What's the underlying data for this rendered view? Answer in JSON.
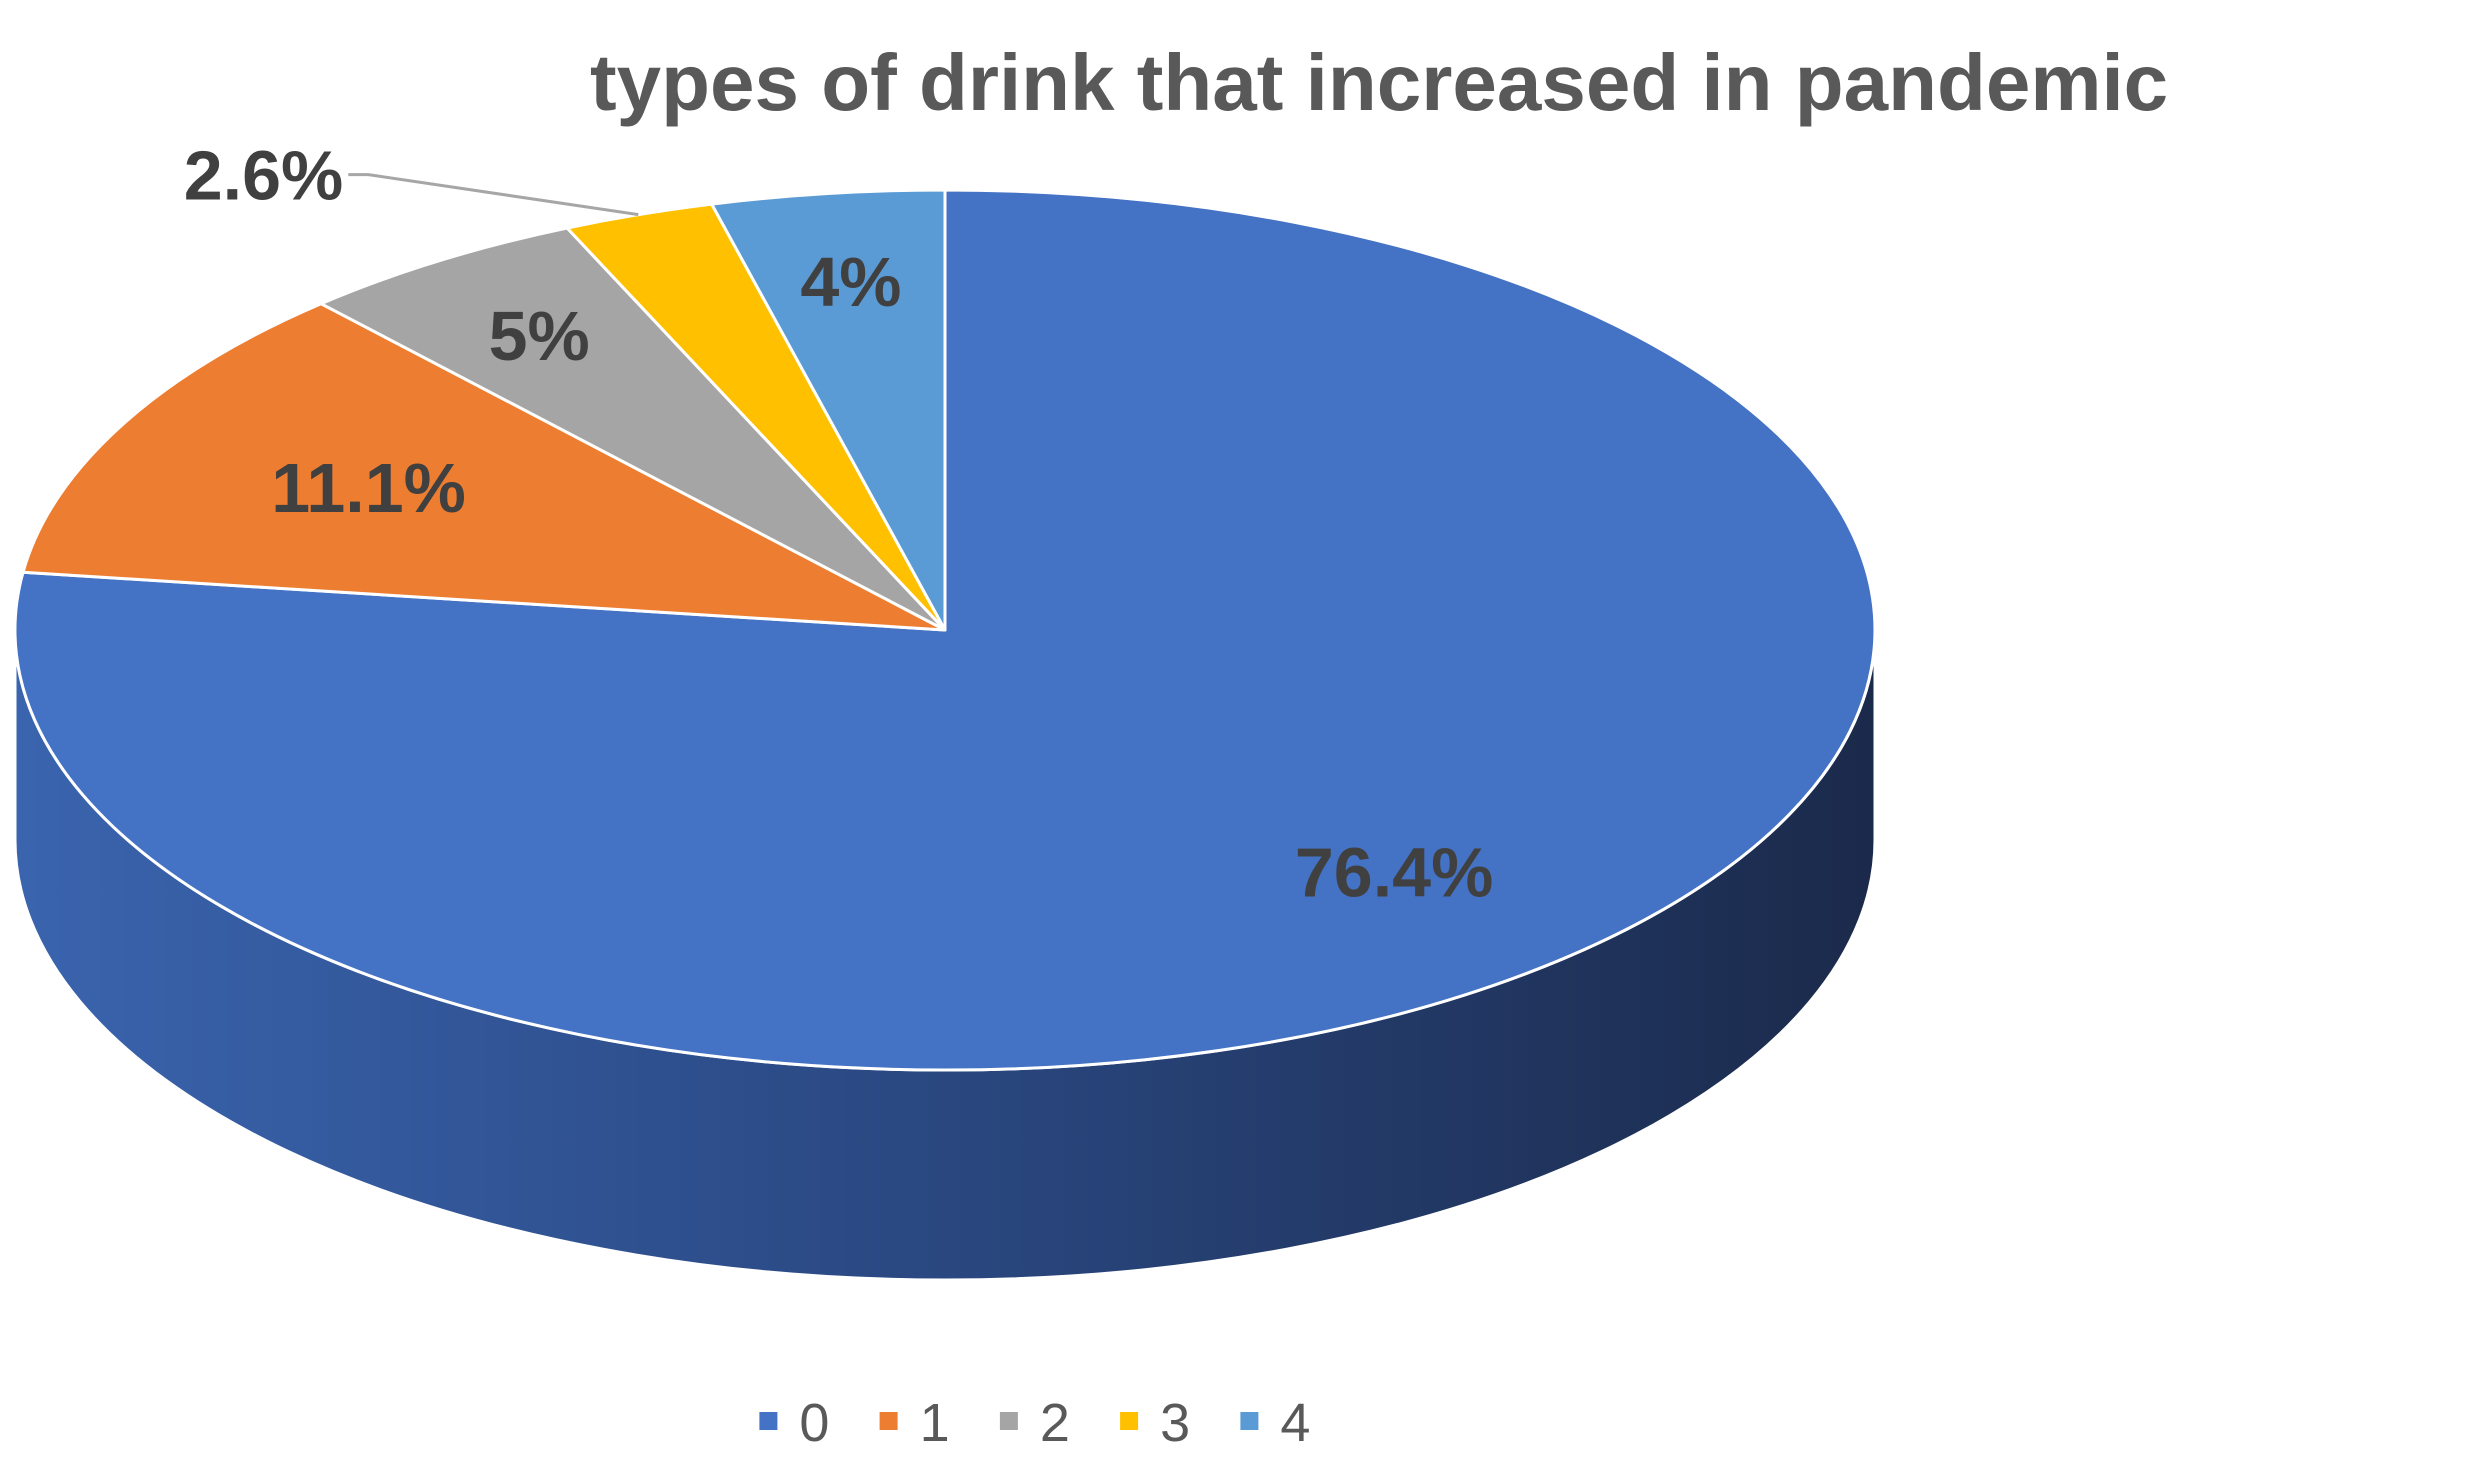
{
  "chart_data": {
    "type": "pie",
    "style": "3d",
    "title": "types of drink that increased in pandemic",
    "categories": [
      "0",
      "1",
      "2",
      "3",
      "4"
    ],
    "values": [
      76.4,
      11.1,
      5,
      2.6,
      4
    ],
    "labels": [
      "76.4%",
      "11.1%",
      "5%",
      "2.6%",
      "4%"
    ],
    "colors": [
      "#4472C4",
      "#ED7D31",
      "#A5A5A5",
      "#FFC000",
      "#5B9BD5"
    ],
    "start_angle": "12 o'clock",
    "direction": "clockwise",
    "legend_position": "bottom"
  }
}
